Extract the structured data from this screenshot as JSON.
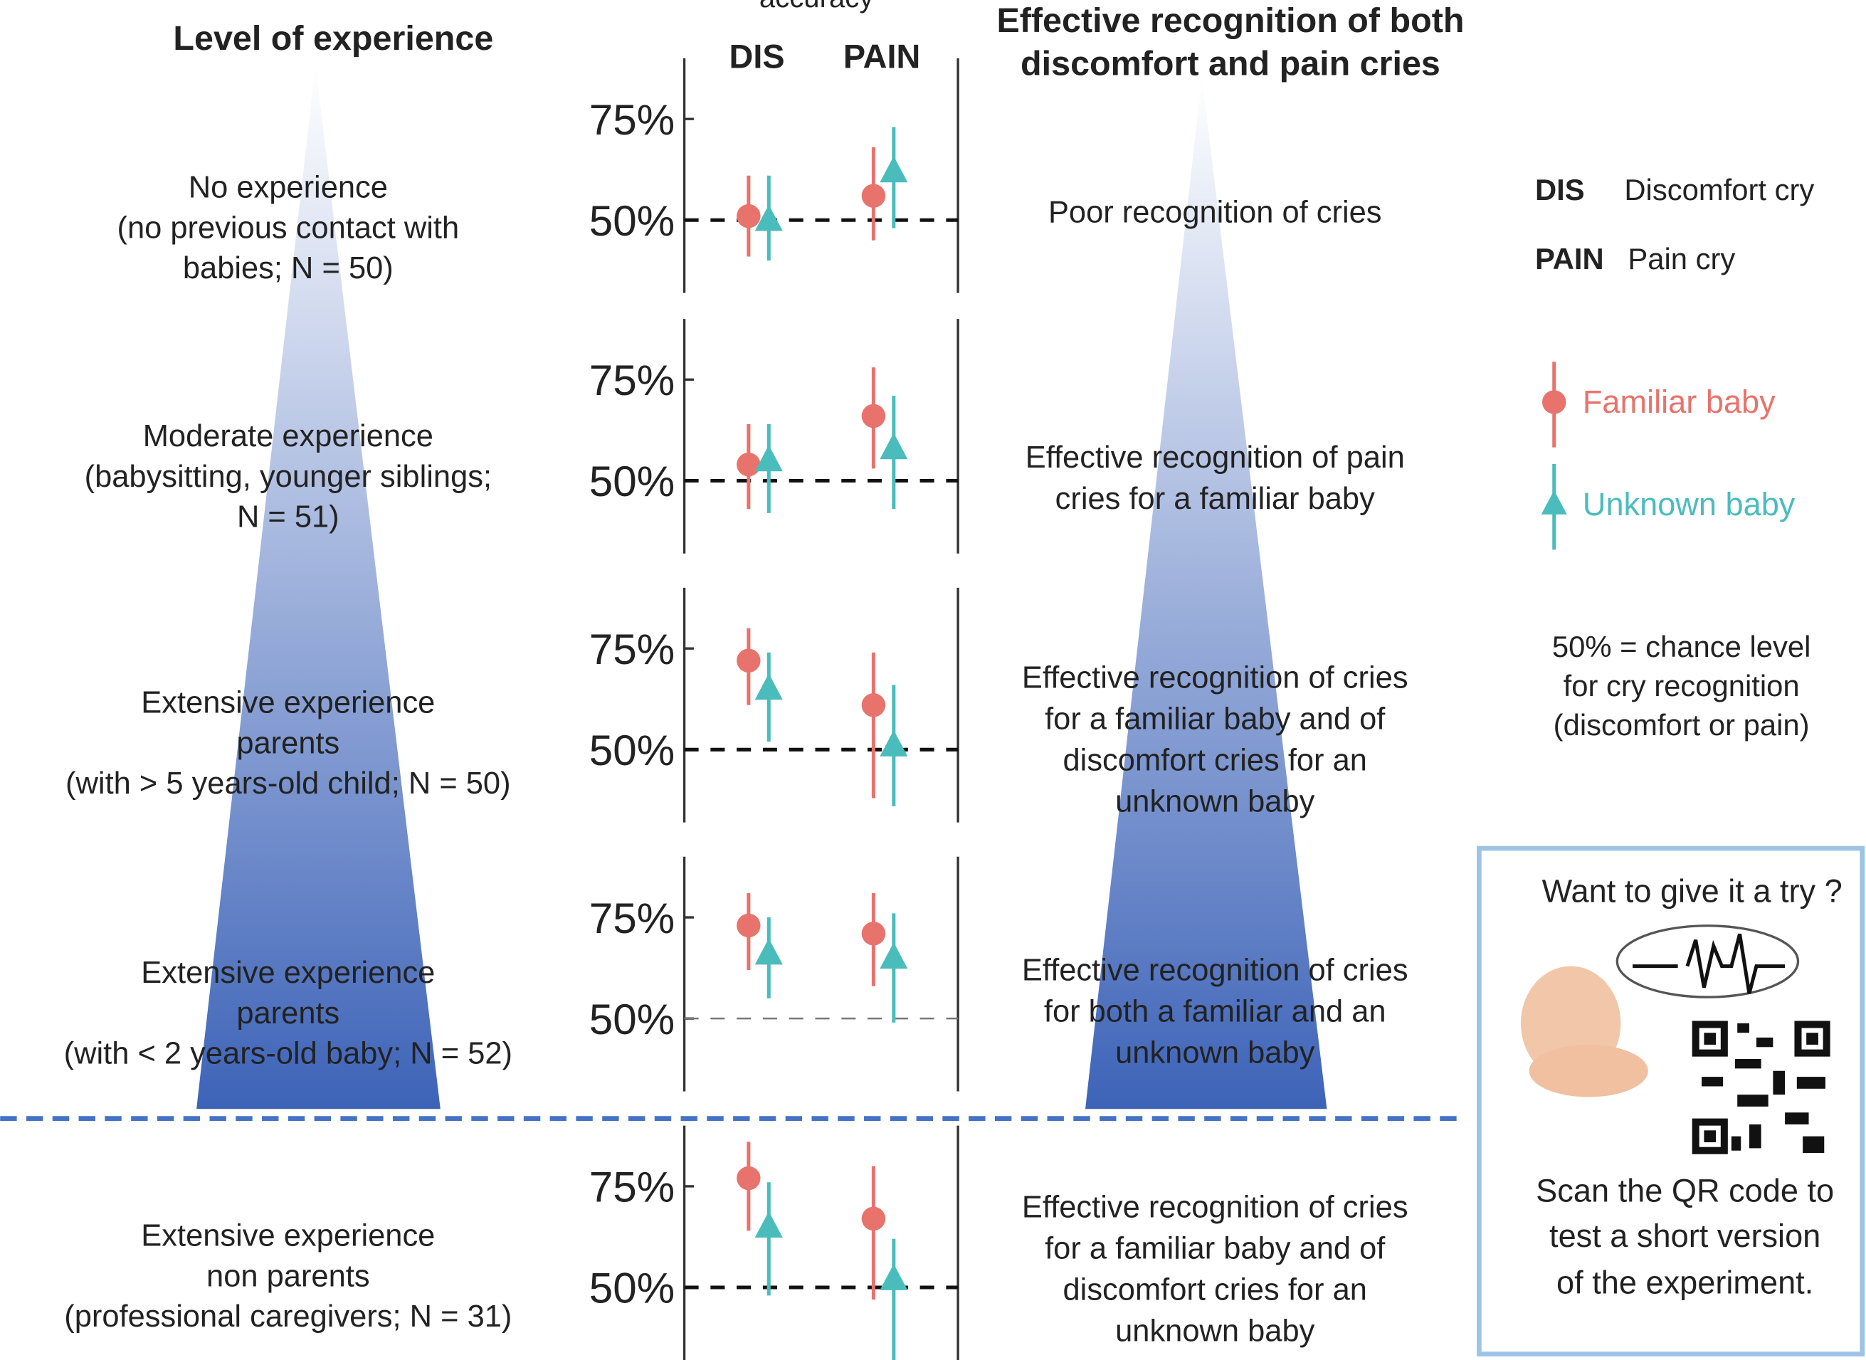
{
  "left_header": "Level of experience",
  "accuracy_label": "accuracy",
  "right_header": [
    "Effective recognition of both",
    "discomfort and pain cries"
  ],
  "chart_data": [
    {
      "type": "errorbar",
      "categories": [
        "DIS",
        "PAIN"
      ],
      "ylim": [
        32,
        90
      ],
      "yticks": [
        {
          "value": 75,
          "label": "75%"
        },
        {
          "value": 50,
          "label": "50%"
        }
      ],
      "label": [
        "No experience",
        "(no previous contact with",
        "babies; N = 50)"
      ],
      "description": [
        "Poor recognition of cries"
      ],
      "series": [
        {
          "values": [
            51,
            56
          ],
          "lower": [
            41,
            45
          ],
          "upper": [
            61,
            68
          ]
        },
        {
          "values": [
            50,
            62
          ],
          "lower": [
            40,
            48
          ],
          "upper": [
            61,
            73
          ]
        }
      ]
    },
    {
      "type": "errorbar",
      "ylim": [
        32,
        90
      ],
      "yticks": [
        {
          "value": 75,
          "label": "75%"
        },
        {
          "value": 50,
          "label": "50%"
        }
      ],
      "label": [
        "Moderate experience",
        "(babysitting, younger siblings;",
        "N = 51)"
      ],
      "description": [
        "Effective recognition of pain",
        "cries for a familiar baby"
      ],
      "series": [
        {
          "values": [
            54,
            66
          ],
          "lower": [
            43,
            53
          ],
          "upper": [
            64,
            78
          ]
        },
        {
          "values": [
            55,
            58
          ],
          "lower": [
            42,
            43
          ],
          "upper": [
            64,
            71
          ]
        }
      ]
    },
    {
      "type": "errorbar",
      "ylim": [
        32,
        90
      ],
      "yticks": [
        {
          "value": 75,
          "label": "75%"
        },
        {
          "value": 50,
          "label": "50%"
        }
      ],
      "label": [
        "Extensive experience",
        "parents",
        "(with > 5 years-old child; N = 50)"
      ],
      "description": [
        "Effective recognition of cries",
        "for a familiar baby and of",
        "discomfort cries for an",
        "unknown baby"
      ],
      "series": [
        {
          "values": [
            72,
            61
          ],
          "lower": [
            61,
            38
          ],
          "upper": [
            80,
            74
          ]
        },
        {
          "values": [
            65,
            51
          ],
          "lower": [
            52,
            36
          ],
          "upper": [
            74,
            66
          ]
        }
      ]
    },
    {
      "type": "errorbar",
      "ylim": [
        32,
        90
      ],
      "yticks": [
        {
          "value": 75,
          "label": "75%"
        },
        {
          "value": 50,
          "label": "50%"
        }
      ],
      "label": [
        "Extensive experience",
        "parents",
        "(with < 2 years-old baby; N = 52)"
      ],
      "description": [
        "Effective recognition of cries",
        "for both a familiar and an",
        "unknown baby"
      ],
      "series": [
        {
          "values": [
            73,
            71
          ],
          "lower": [
            62,
            58
          ],
          "upper": [
            81,
            81
          ]
        },
        {
          "values": [
            66,
            65
          ],
          "lower": [
            55,
            49
          ],
          "upper": [
            75,
            76
          ]
        }
      ]
    },
    {
      "type": "errorbar",
      "ylim": [
        32,
        90
      ],
      "yticks": [
        {
          "value": 75,
          "label": "75%"
        },
        {
          "value": 50,
          "label": "50%"
        }
      ],
      "label": [
        "Extensive experience",
        "non parents",
        "(professional caregivers; N = 31)"
      ],
      "description": [
        "Effective recognition of cries",
        "for a familiar baby and of",
        "discomfort cries for an",
        "unknown baby"
      ],
      "series": [
        {
          "values": [
            77,
            67
          ],
          "lower": [
            64,
            47
          ],
          "upper": [
            86,
            80
          ]
        },
        {
          "values": [
            65,
            52
          ],
          "lower": [
            48,
            32
          ],
          "upper": [
            76,
            62
          ]
        }
      ]
    }
  ],
  "legend": {
    "categories": [
      {
        "abbr": "DIS",
        "name": "Discomfort cry"
      },
      {
        "abbr": "PAIN",
        "name": "Pain cry"
      }
    ],
    "series": [
      {
        "name": "Familiar baby",
        "color": "#e8736c"
      },
      {
        "name": "Unknown baby",
        "color": "#4bbcbc"
      }
    ]
  },
  "note": [
    "50% = chance level",
    "for cry recognition",
    "(discomfort or pain)"
  ],
  "try_box": {
    "title": "Want to give it a try ?",
    "text": [
      "Scan the QR code to",
      "test a short version",
      "of the experiment."
    ]
  }
}
